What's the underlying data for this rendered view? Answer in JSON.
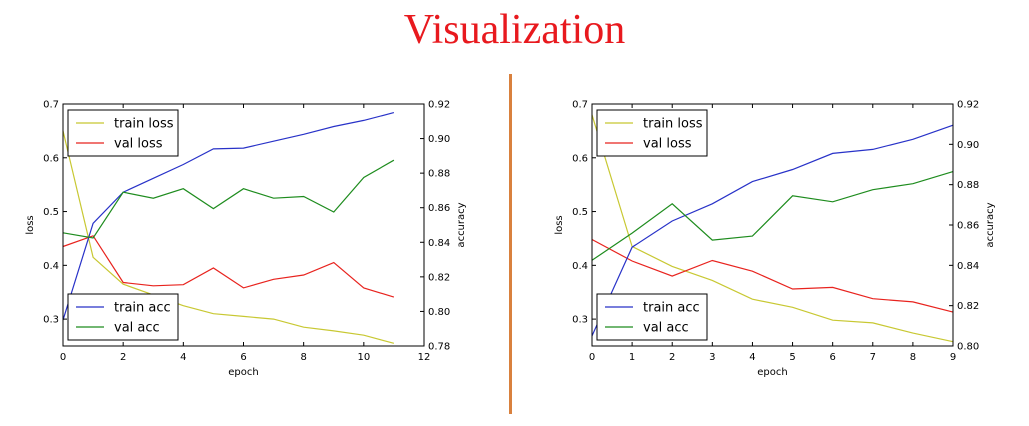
{
  "page": {
    "title": "Visualization",
    "title_color": "#e8191e",
    "divider_color": "#d9813e"
  },
  "chart_data": [
    {
      "type": "line",
      "xlabel": "epoch",
      "ylabel_left": "loss",
      "ylabel_right": "accuracy",
      "xlim": [
        0,
        12
      ],
      "ylim_left": [
        0.25,
        0.7
      ],
      "ylim_right": [
        0.78,
        0.92
      ],
      "xticks": [
        0,
        2,
        4,
        6,
        8,
        10,
        12
      ],
      "yticks_left": [
        0.3,
        0.4,
        0.5,
        0.6,
        0.7
      ],
      "yticks_right": [
        0.78,
        0.8,
        0.82,
        0.84,
        0.86,
        0.88,
        0.9,
        0.92
      ],
      "legend_left_placement": "upper-left",
      "legend_right_placement": "lower-left",
      "grid": false,
      "series": [
        {
          "name": "train loss",
          "axis": "left",
          "color": "#c8c832",
          "x": [
            0,
            1,
            2,
            3,
            4,
            5,
            6,
            7,
            8,
            9,
            10,
            11
          ],
          "values": [
            0.65,
            0.415,
            0.365,
            0.345,
            0.325,
            0.31,
            0.305,
            0.3,
            0.285,
            0.278,
            0.27,
            0.255
          ]
        },
        {
          "name": "val loss",
          "axis": "left",
          "color": "#e8231e",
          "x": [
            0,
            1,
            2,
            3,
            4,
            5,
            6,
            7,
            8,
            9,
            10,
            11
          ],
          "values": [
            0.435,
            0.455,
            0.368,
            0.362,
            0.364,
            0.395,
            0.358,
            0.374,
            0.382,
            0.405,
            0.358,
            0.341
          ]
        },
        {
          "name": "train acc",
          "axis": "right",
          "color": "#2832c8",
          "x": [
            0,
            1,
            2,
            3,
            4,
            5,
            6,
            7,
            8,
            9,
            10,
            11
          ],
          "values": [
            0.795,
            0.851,
            0.869,
            0.877,
            0.885,
            0.894,
            0.8945,
            0.8985,
            0.9025,
            0.907,
            0.9105,
            0.915
          ]
        },
        {
          "name": "val acc",
          "axis": "right",
          "color": "#1e8c1e",
          "x": [
            0,
            1,
            2,
            3,
            4,
            5,
            6,
            7,
            8,
            9,
            10,
            11
          ],
          "values": [
            0.8455,
            0.8425,
            0.869,
            0.8655,
            0.871,
            0.8595,
            0.871,
            0.8655,
            0.8665,
            0.8575,
            0.8775,
            0.8875
          ]
        }
      ]
    },
    {
      "type": "line",
      "xlabel": "epoch",
      "ylabel_left": "loss",
      "ylabel_right": "accuracy",
      "xlim": [
        0,
        9
      ],
      "ylim_left": [
        0.25,
        0.7
      ],
      "ylim_right": [
        0.8,
        0.92
      ],
      "xticks": [
        0,
        1,
        2,
        3,
        4,
        5,
        6,
        7,
        8,
        9
      ],
      "yticks_left": [
        0.3,
        0.4,
        0.5,
        0.6,
        0.7
      ],
      "yticks_right": [
        0.8,
        0.82,
        0.84,
        0.86,
        0.88,
        0.9,
        0.92
      ],
      "legend_left_placement": "upper-left",
      "legend_right_placement": "lower-left",
      "grid": false,
      "series": [
        {
          "name": "train loss",
          "axis": "left",
          "color": "#c8c832",
          "x": [
            0,
            1,
            2,
            3,
            4,
            5,
            6,
            7,
            8,
            9
          ],
          "values": [
            0.68,
            0.435,
            0.398,
            0.372,
            0.337,
            0.322,
            0.298,
            0.293,
            0.274,
            0.258
          ]
        },
        {
          "name": "val loss",
          "axis": "left",
          "color": "#e8231e",
          "x": [
            0,
            1,
            2,
            3,
            4,
            5,
            6,
            7,
            8,
            9
          ],
          "values": [
            0.448,
            0.408,
            0.38,
            0.409,
            0.389,
            0.356,
            0.359,
            0.338,
            0.332,
            0.313
          ]
        },
        {
          "name": "train acc",
          "axis": "right",
          "color": "#2832c8",
          "x": [
            0,
            1,
            2,
            3,
            4,
            5,
            6,
            7,
            8,
            9
          ],
          "values": [
            0.805,
            0.849,
            0.862,
            0.8705,
            0.8815,
            0.8875,
            0.8955,
            0.8975,
            0.9025,
            0.9095
          ]
        },
        {
          "name": "val acc",
          "axis": "right",
          "color": "#1e8c1e",
          "x": [
            0,
            1,
            2,
            3,
            4,
            5,
            6,
            7,
            8,
            9
          ],
          "values": [
            0.8425,
            0.856,
            0.8705,
            0.8525,
            0.8545,
            0.8745,
            0.8715,
            0.8775,
            0.8805,
            0.8865
          ]
        }
      ]
    }
  ]
}
